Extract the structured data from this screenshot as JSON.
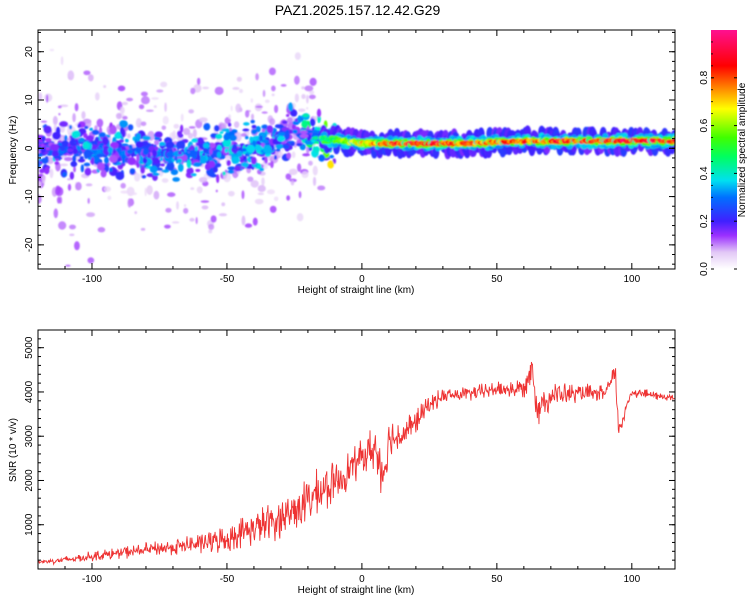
{
  "figure": {
    "title": "PAZ1.2025.157.12.42.G29"
  },
  "chart_data": [
    {
      "type": "heatmap",
      "xlabel": "Height of straight line (km)",
      "ylabel": "Frequency (Hz)",
      "xlim": [
        -120,
        116
      ],
      "ylim": [
        -25,
        24.5
      ],
      "xticks": [
        -100,
        -50,
        0,
        50,
        100
      ],
      "xtick_labels": [
        "-100",
        "-50",
        "0",
        "50",
        "100"
      ],
      "yticks": [
        -20,
        -10,
        0,
        10,
        20
      ],
      "ytick_labels": [
        "-20",
        "-10",
        "0",
        "10",
        "20"
      ],
      "colorbar": {
        "label": "Normalized spectral amplitude",
        "range": [
          0,
          1
        ],
        "ticks": [
          0.0,
          0.2,
          0.4,
          0.6,
          0.8
        ],
        "tick_labels": [
          "0.0",
          "0.2",
          "0.4",
          "0.6",
          "0.8"
        ],
        "colormap": "rainbow (white → violet → blue → cyan → green → yellow → red → magenta)"
      },
      "ridge": {
        "description": "dominant frequency trace",
        "x": [
          -120,
          -100,
          -80,
          -60,
          -40,
          -25,
          -15,
          0,
          20,
          40,
          60,
          80,
          100,
          116
        ],
        "frequency": [
          0,
          0,
          -1,
          -1,
          0,
          3,
          2,
          1,
          1,
          1,
          1.5,
          1.5,
          1.5,
          1.5
        ],
        "peak_amplitude": [
          0.15,
          0.2,
          0.2,
          0.22,
          0.25,
          0.2,
          0.45,
          0.75,
          0.95,
          0.85,
          0.85,
          0.9,
          0.95,
          0.95
        ]
      },
      "grid": false
    },
    {
      "type": "line",
      "xlabel": "Height of straight line (km)",
      "ylabel": "SNR (10 * v/v)",
      "xlim": [
        -120,
        116
      ],
      "ylim": [
        0,
        5400
      ],
      "xticks": [
        -100,
        -50,
        0,
        50,
        100
      ],
      "xtick_labels": [
        "-100",
        "-50",
        "0",
        "50",
        "100"
      ],
      "yticks": [
        1000,
        2000,
        3000,
        4000,
        5000
      ],
      "ytick_labels": [
        "1000",
        "2000",
        "3000",
        "4000",
        "5000"
      ],
      "color": "#ee3333",
      "series": [
        {
          "x": [
            -120,
            -110,
            -100,
            -90,
            -80,
            -70,
            -60,
            -50,
            -40,
            -35,
            -30,
            -25,
            -20,
            -15,
            -10,
            -5,
            0,
            5,
            8,
            10,
            15,
            20,
            25,
            30,
            40,
            50,
            60,
            63,
            65,
            70,
            80,
            90,
            94,
            95,
            100,
            110,
            116
          ],
          "y": [
            150,
            200,
            280,
            350,
            420,
            480,
            560,
            650,
            900,
            1000,
            1100,
            1300,
            1500,
            1700,
            1900,
            2200,
            2500,
            2700,
            2100,
            2900,
            3000,
            3300,
            3700,
            3900,
            3950,
            4050,
            4050,
            4600,
            3600,
            3900,
            3950,
            3950,
            4400,
            3100,
            4000,
            3900,
            3850
          ],
          "noise": [
            60,
            100,
            130,
            160,
            180,
            220,
            280,
            350,
            450,
            500,
            550,
            600,
            620,
            600,
            550,
            500,
            450,
            650,
            700,
            500,
            450,
            350,
            250,
            200,
            200,
            220,
            280,
            450,
            500,
            350,
            250,
            200,
            300,
            300,
            150,
            120,
            100
          ]
        }
      ],
      "grid": false
    }
  ]
}
